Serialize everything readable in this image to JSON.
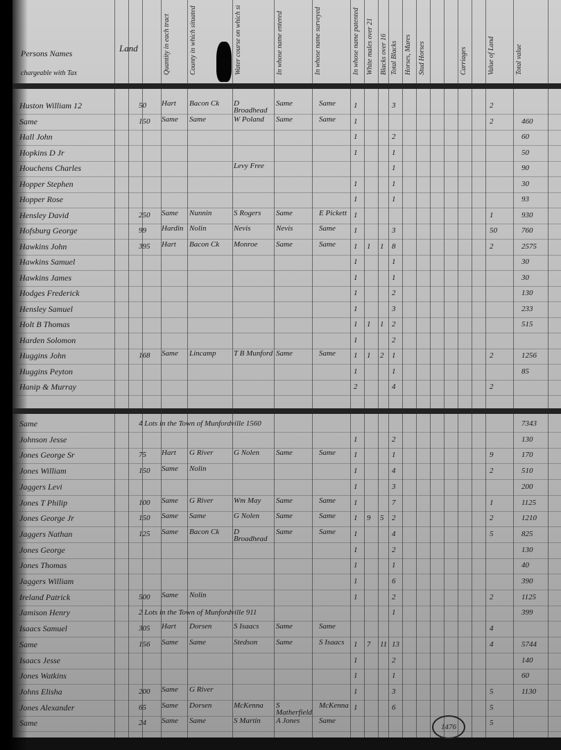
{
  "header": {
    "names_label": "Persons Names",
    "names_sublabel": "chargeable with Tax",
    "land_label": "Land",
    "columns": [
      "Quantity in each tract",
      "County in which situated",
      "Water course on which situated",
      "In whose name entered",
      "In whose name surveyed",
      "In whose name patented",
      "White males over 21",
      "Blacks over 16",
      "Total Blacks",
      "Horses, Mares",
      "Stud Horses",
      "Carriages",
      "Value of Land",
      "Total value"
    ]
  },
  "sections": [
    {
      "rows": [
        {
          "name": "Huston William 12",
          "acres": "50",
          "county": "Hart",
          "water": "Bacon Ck",
          "entered": "D Broadhead",
          "surveyed": "Same",
          "patented": "Same",
          "c1": "1",
          "c2": "",
          "c3": "",
          "c4": "3",
          "c5": "2",
          "value": ""
        },
        {
          "name": "Same",
          "acres": "150",
          "county": "Same",
          "water": "Same",
          "entered": "W Poland",
          "surveyed": "Same",
          "patented": "Same",
          "c1": "1",
          "c2": "",
          "c3": "",
          "c4": "",
          "c5": "2",
          "value": "460"
        },
        {
          "name": "Hall John",
          "acres": "",
          "county": "",
          "water": "",
          "entered": "",
          "surveyed": "",
          "patented": "",
          "c1": "1",
          "c2": "",
          "c3": "",
          "c4": "2",
          "c5": "",
          "value": "60"
        },
        {
          "name": "Hopkins D Jr",
          "acres": "",
          "county": "",
          "water": "",
          "entered": "",
          "surveyed": "",
          "patented": "",
          "c1": "1",
          "c2": "",
          "c3": "",
          "c4": "1",
          "c5": "",
          "value": "50"
        },
        {
          "name": "Houchens Charles",
          "acres": "",
          "county": "",
          "water": "",
          "entered": "Levy Free",
          "surveyed": "",
          "patented": "",
          "c1": "",
          "c2": "",
          "c3": "",
          "c4": "1",
          "c5": "",
          "value": "90"
        },
        {
          "name": "Hopper Stephen",
          "acres": "",
          "county": "",
          "water": "",
          "entered": "",
          "surveyed": "",
          "patented": "",
          "c1": "1",
          "c2": "",
          "c3": "",
          "c4": "1",
          "c5": "",
          "value": "30"
        },
        {
          "name": "Hopper Rose",
          "acres": "",
          "county": "",
          "water": "",
          "entered": "",
          "surveyed": "",
          "patented": "",
          "c1": "1",
          "c2": "",
          "c3": "",
          "c4": "1",
          "c5": "",
          "value": "93"
        },
        {
          "name": "Hensley David",
          "acres": "250",
          "county": "Same",
          "water": "Nunnin",
          "entered": "S Rogers",
          "surveyed": "Same",
          "patented": "E Pickett",
          "c1": "1",
          "c2": "",
          "c3": "",
          "c4": "",
          "c5": "1",
          "value": "930"
        },
        {
          "name": "Hofsburg George",
          "acres": "99",
          "county": "Hardin",
          "water": "Nolin",
          "entered": "Nevis",
          "surveyed": "Nevis",
          "patented": "Same",
          "c1": "1",
          "c2": "",
          "c3": "",
          "c4": "3",
          "c5": "50",
          "value": "760"
        },
        {
          "name": "Hawkins John",
          "acres": "395",
          "county": "Hart",
          "water": "Bacon Ck",
          "entered": "Monroe",
          "surveyed": "Same",
          "patented": "Same",
          "c1": "1",
          "c2": "1",
          "c3": "1",
          "c4": "8",
          "c5": "2",
          "value": "2575"
        },
        {
          "name": "Hawkins Samuel",
          "acres": "",
          "county": "",
          "water": "",
          "entered": "",
          "surveyed": "",
          "patented": "",
          "c1": "1",
          "c2": "",
          "c3": "",
          "c4": "1",
          "c5": "",
          "value": "30"
        },
        {
          "name": "Hawkins James",
          "acres": "",
          "county": "",
          "water": "",
          "entered": "",
          "surveyed": "",
          "patented": "",
          "c1": "1",
          "c2": "",
          "c3": "",
          "c4": "1",
          "c5": "",
          "value": "30"
        },
        {
          "name": "Hodges Frederick",
          "acres": "",
          "county": "",
          "water": "",
          "entered": "",
          "surveyed": "",
          "patented": "",
          "c1": "1",
          "c2": "",
          "c3": "",
          "c4": "2",
          "c5": "",
          "value": "130"
        },
        {
          "name": "Hensley Samuel",
          "acres": "",
          "county": "",
          "water": "",
          "entered": "",
          "surveyed": "",
          "patented": "",
          "c1": "1",
          "c2": "",
          "c3": "",
          "c4": "3",
          "c5": "",
          "value": "233"
        },
        {
          "name": "Holt B Thomas",
          "acres": "",
          "county": "",
          "water": "",
          "entered": "",
          "surveyed": "",
          "patented": "",
          "c1": "1",
          "c2": "1",
          "c3": "1",
          "c4": "2",
          "c5": "",
          "value": "515"
        },
        {
          "name": "Harden Solomon",
          "acres": "",
          "county": "",
          "water": "",
          "entered": "",
          "surveyed": "",
          "patented": "",
          "c1": "1",
          "c2": "",
          "c3": "",
          "c4": "2",
          "c5": "",
          "value": ""
        },
        {
          "name": "Huggins John",
          "acres": "168",
          "county": "Same",
          "water": "Lincamp",
          "entered": "T B Munford",
          "surveyed": "Same",
          "patented": "Same",
          "c1": "1",
          "c2": "1",
          "c3": "2",
          "c4": "1",
          "c5": "2",
          "value": "1256"
        },
        {
          "name": "Huggins Peyton",
          "acres": "",
          "county": "",
          "water": "",
          "entered": "",
          "surveyed": "",
          "patented": "",
          "c1": "1",
          "c2": "",
          "c3": "",
          "c4": "1",
          "c5": "",
          "value": "85"
        },
        {
          "name": "Hanip & Murray",
          "acres": "",
          "county": "",
          "water": "",
          "entered": "",
          "surveyed": "",
          "patented": "",
          "c1": "2",
          "c2": "",
          "c3": "",
          "c4": "4",
          "c5": "2",
          "value": ""
        }
      ]
    },
    {
      "rows": [
        {
          "name": "Same",
          "acres": "4 Lots in the Town of Munfordville  1560",
          "county": "",
          "water": "",
          "entered": "",
          "surveyed": "",
          "patented": "",
          "c1": "",
          "c2": "",
          "c3": "",
          "c4": "",
          "c5": "",
          "value": "7343"
        },
        {
          "name": "Johnson Jesse",
          "acres": "",
          "county": "",
          "water": "",
          "entered": "",
          "surveyed": "",
          "patented": "",
          "c1": "1",
          "c2": "",
          "c3": "",
          "c4": "2",
          "c5": "",
          "value": "130"
        },
        {
          "name": "Jones George Sr",
          "acres": "75",
          "county": "Hart",
          "water": "G River",
          "entered": "G Nolen",
          "surveyed": "Same",
          "patented": "Same",
          "c1": "1",
          "c2": "",
          "c3": "",
          "c4": "1",
          "c5": "9",
          "value": "170"
        },
        {
          "name": "Jones William",
          "acres": "150",
          "county": "Same",
          "water": "Nolin",
          "entered": "",
          "surveyed": "",
          "patented": "",
          "c1": "1",
          "c2": "",
          "c3": "",
          "c4": "4",
          "c5": "2",
          "value": "510"
        },
        {
          "name": "Jaggers Levi",
          "acres": "",
          "county": "",
          "water": "",
          "entered": "",
          "surveyed": "",
          "patented": "",
          "c1": "1",
          "c2": "",
          "c3": "",
          "c4": "3",
          "c5": "",
          "value": "200"
        },
        {
          "name": "Jones T Philip",
          "acres": "100",
          "county": "Same",
          "water": "G River",
          "entered": "Wm May",
          "surveyed": "Same",
          "patented": "Same",
          "c1": "1",
          "c2": "",
          "c3": "",
          "c4": "7",
          "c5": "1",
          "value": "1125"
        },
        {
          "name": "Jones George Jr",
          "acres": "150",
          "county": "Same",
          "water": "Same",
          "entered": "G Nolen",
          "surveyed": "Same",
          "patented": "Same",
          "c1": "1",
          "c2": "9",
          "c3": "5",
          "c4": "2",
          "c5": "2",
          "value": "1210"
        },
        {
          "name": "Jaggers Nathan",
          "acres": "125",
          "county": "Same",
          "water": "Bacon Ck",
          "entered": "D Broadhead",
          "surveyed": "Same",
          "patented": "Same",
          "c1": "1",
          "c2": "",
          "c3": "",
          "c4": "4",
          "c5": "5",
          "value": "825"
        },
        {
          "name": "Jones George",
          "acres": "",
          "county": "",
          "water": "",
          "entered": "",
          "surveyed": "",
          "patented": "",
          "c1": "1",
          "c2": "",
          "c3": "",
          "c4": "2",
          "c5": "",
          "value": "130"
        },
        {
          "name": "Jones Thomas",
          "acres": "",
          "county": "",
          "water": "",
          "entered": "",
          "surveyed": "",
          "patented": "",
          "c1": "1",
          "c2": "",
          "c3": "",
          "c4": "1",
          "c5": "",
          "value": "40"
        },
        {
          "name": "Jaggers William",
          "acres": "",
          "county": "",
          "water": "",
          "entered": "",
          "surveyed": "",
          "patented": "",
          "c1": "1",
          "c2": "",
          "c3": "",
          "c4": "6",
          "c5": "",
          "value": "390"
        },
        {
          "name": "Ireland Patrick",
          "acres": "500",
          "county": "Same",
          "water": "Nolin",
          "entered": "",
          "surveyed": "",
          "patented": "",
          "c1": "1",
          "c2": "",
          "c3": "",
          "c4": "2",
          "c5": "2",
          "value": "1125"
        },
        {
          "name": "Jamison Henry",
          "acres": "2 Lots in the Town of Munfordville  911",
          "county": "",
          "water": "",
          "entered": "",
          "surveyed": "",
          "patented": "",
          "c1": "",
          "c2": "",
          "c3": "",
          "c4": "1",
          "c5": "",
          "value": "399"
        },
        {
          "name": "Isaacs Samuel",
          "acres": "305",
          "county": "Hart",
          "water": "Dorsen",
          "entered": "S Isaacs",
          "surveyed": "Same",
          "patented": "Same",
          "c1": "",
          "c2": "",
          "c3": "",
          "c4": "",
          "c5": "4",
          "value": ""
        },
        {
          "name": "Same",
          "acres": "156",
          "county": "Same",
          "water": "Same",
          "entered": "Stedson",
          "surveyed": "Same",
          "patented": "S Isaacs",
          "c1": "1",
          "c2": "7",
          "c3": "11",
          "c4": "13",
          "c5": "4",
          "value": "5744"
        },
        {
          "name": "Isaacs Jesse",
          "acres": "",
          "county": "",
          "water": "",
          "entered": "",
          "surveyed": "",
          "patented": "",
          "c1": "1",
          "c2": "",
          "c3": "",
          "c4": "2",
          "c5": "",
          "value": "140"
        },
        {
          "name": "Jones Watkins",
          "acres": "",
          "county": "",
          "water": "",
          "entered": "",
          "surveyed": "",
          "patented": "",
          "c1": "1",
          "c2": "",
          "c3": "",
          "c4": "1",
          "c5": "",
          "value": "60"
        },
        {
          "name": "Johns Elisha",
          "acres": "200",
          "county": "Same",
          "water": "G River",
          "entered": "",
          "surveyed": "",
          "patented": "",
          "c1": "1",
          "c2": "",
          "c3": "",
          "c4": "3",
          "c5": "5",
          "value": "1130"
        },
        {
          "name": "Jones Alexander",
          "acres": "65",
          "county": "Same",
          "water": "Dorsen",
          "entered": "McKenna",
          "surveyed": "S Matherfield",
          "patented": "McKenna",
          "c1": "1",
          "c2": "",
          "c3": "",
          "c4": "6",
          "c5": "5",
          "value": ""
        },
        {
          "name": "Same",
          "acres": "24",
          "county": "Same",
          "water": "Same",
          "entered": "S Martin",
          "surveyed": "A Jones",
          "patented": "Same",
          "c1": "",
          "c2": "",
          "c3": "",
          "c4": "",
          "c5": "5",
          "value": ""
        }
      ]
    }
  ],
  "stamp": "1476",
  "colors": {
    "paper": "#c2c2c2",
    "ink": "#151515",
    "border": "#111111"
  }
}
